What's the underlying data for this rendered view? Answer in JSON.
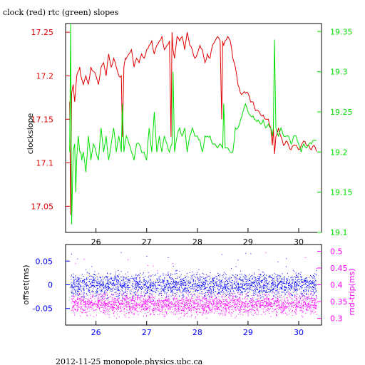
{
  "title": "clock (red) rtc (green) slopes",
  "footer": "2012-11-25 monopole.physics.ubc.ca",
  "colors": {
    "clock": "#e00000",
    "rtc": "#00e000",
    "offset": "#0000ff",
    "rndtrip": "#ff00ff",
    "axis": "#000000"
  },
  "chart_data": [
    {
      "type": "line",
      "ylabel": "clockslope",
      "xlim": [
        25.4,
        30.45
      ],
      "x_ticks": [
        26,
        27,
        28,
        29,
        30
      ],
      "x_tick_labels": [
        "26",
        "27",
        "28",
        "29",
        "30"
      ],
      "ylim_left": [
        17.02,
        17.26
      ],
      "y_ticks_left": [
        17.05,
        17.1,
        17.15,
        17.2,
        17.25
      ],
      "y_tick_labels_left": [
        "17.05",
        "17.1",
        "17.15",
        "17.2",
        "17.25"
      ],
      "ylim_right": [
        19.1,
        19.36
      ],
      "y_ticks_right": [
        19.1,
        19.15,
        19.2,
        19.25,
        19.3,
        19.35
      ],
      "y_tick_labels_right": [
        "19.1",
        "19.15",
        "19.2",
        "19.25",
        "19.3",
        "19.35"
      ],
      "grid": false,
      "series": [
        {
          "axis": "left",
          "x": [
            25.48,
            25.5,
            25.52,
            25.55,
            25.58,
            25.6,
            25.62,
            25.65,
            25.68,
            25.7,
            25.75,
            25.8,
            25.85,
            25.9,
            25.95,
            26.0,
            26.05,
            26.1,
            26.15,
            26.2,
            26.25,
            26.3,
            26.35,
            26.4,
            26.45,
            26.5,
            26.52,
            26.55,
            26.58,
            26.6,
            26.65,
            26.7,
            26.75,
            26.8,
            26.85,
            26.9,
            26.95,
            27.0,
            27.05,
            27.1,
            27.15,
            27.2,
            27.25,
            27.3,
            27.35,
            27.4,
            27.45,
            27.48,
            27.5,
            27.52,
            27.55,
            27.6,
            27.65,
            27.7,
            27.75,
            27.8,
            27.85,
            27.9,
            27.95,
            28.0,
            28.05,
            28.1,
            28.15,
            28.2,
            28.25,
            28.3,
            28.35,
            28.4,
            28.45,
            28.48,
            28.5,
            28.52,
            28.55,
            28.6,
            28.65,
            28.7,
            28.75,
            28.8,
            28.85,
            28.9,
            28.95,
            29.0,
            29.05,
            29.1,
            29.15,
            29.2,
            29.25,
            29.3,
            29.35,
            29.4,
            29.45,
            29.48,
            29.5,
            29.52,
            29.55,
            29.6,
            29.65,
            29.7,
            29.75,
            29.8,
            29.85,
            29.9,
            29.95,
            30.0,
            30.05,
            30.1,
            30.15,
            30.2,
            30.25,
            30.3,
            30.35
          ],
          "y": [
            17.17,
            17.04,
            17.18,
            17.19,
            17.17,
            17.185,
            17.2,
            17.205,
            17.21,
            17.2,
            17.19,
            17.2,
            17.19,
            17.21,
            17.205,
            17.2,
            17.19,
            17.21,
            17.215,
            17.2,
            17.225,
            17.21,
            17.22,
            17.21,
            17.2,
            17.2,
            17.13,
            17.21,
            17.22,
            17.22,
            17.225,
            17.23,
            17.21,
            17.22,
            17.215,
            17.225,
            17.22,
            17.23,
            17.235,
            17.24,
            17.225,
            17.235,
            17.24,
            17.245,
            17.23,
            17.235,
            17.24,
            17.13,
            17.25,
            17.23,
            17.22,
            17.245,
            17.24,
            17.245,
            17.23,
            17.25,
            17.235,
            17.23,
            17.22,
            17.225,
            17.235,
            17.23,
            17.215,
            17.225,
            17.22,
            17.235,
            17.24,
            17.245,
            17.24,
            17.15,
            17.24,
            17.235,
            17.24,
            17.245,
            17.24,
            17.22,
            17.21,
            17.19,
            17.18,
            17.18,
            17.18,
            17.18,
            17.17,
            17.17,
            17.16,
            17.16,
            17.155,
            17.155,
            17.15,
            17.15,
            17.14,
            17.12,
            17.14,
            17.11,
            17.13,
            17.14,
            17.13,
            17.12,
            17.125,
            17.12,
            17.115,
            17.12,
            17.12,
            17.115,
            17.12,
            17.125,
            17.12,
            17.12,
            17.115,
            17.12,
            17.113
          ]
        },
        {
          "axis": "right",
          "x": [
            25.48,
            25.5,
            25.52,
            25.55,
            25.58,
            25.6,
            25.62,
            25.65,
            25.68,
            25.7,
            25.72,
            25.75,
            25.8,
            25.85,
            25.9,
            25.95,
            26.0,
            26.05,
            26.1,
            26.15,
            26.2,
            26.25,
            26.3,
            26.35,
            26.4,
            26.45,
            26.5,
            26.52,
            26.55,
            26.6,
            26.65,
            26.7,
            26.75,
            26.8,
            26.85,
            26.9,
            26.95,
            27.0,
            27.05,
            27.1,
            27.15,
            27.2,
            27.25,
            27.3,
            27.35,
            27.4,
            27.45,
            27.5,
            27.52,
            27.55,
            27.6,
            27.65,
            27.7,
            27.75,
            27.8,
            27.85,
            27.9,
            27.95,
            28.0,
            28.05,
            28.1,
            28.15,
            28.2,
            28.25,
            28.3,
            28.35,
            28.4,
            28.45,
            28.5,
            28.52,
            28.55,
            28.6,
            28.65,
            28.7,
            28.75,
            28.8,
            28.85,
            28.9,
            28.95,
            29.0,
            29.05,
            29.1,
            29.15,
            29.2,
            29.25,
            29.3,
            29.35,
            29.4,
            29.45,
            29.48,
            29.5,
            29.52,
            29.55,
            29.6,
            29.65,
            29.7,
            29.75,
            29.8,
            29.85,
            29.9,
            29.95,
            30.0,
            30.05,
            30.1,
            30.15,
            30.2,
            30.25,
            30.3,
            30.35
          ],
          "y": [
            19.2,
            19.36,
            19.11,
            19.2,
            19.21,
            19.15,
            19.19,
            19.22,
            19.2,
            19.2,
            19.19,
            19.2,
            19.175,
            19.22,
            19.19,
            19.21,
            19.2,
            19.19,
            19.23,
            19.2,
            19.22,
            19.19,
            19.21,
            19.23,
            19.2,
            19.22,
            19.2,
            19.26,
            19.2,
            19.22,
            19.21,
            19.2,
            19.19,
            19.21,
            19.21,
            19.2,
            19.2,
            19.19,
            19.23,
            19.2,
            19.25,
            19.2,
            19.22,
            19.2,
            19.22,
            19.21,
            19.2,
            19.21,
            19.3,
            19.2,
            19.22,
            19.23,
            19.22,
            19.23,
            19.2,
            19.22,
            19.23,
            19.22,
            19.22,
            19.215,
            19.2,
            19.22,
            19.22,
            19.22,
            19.21,
            19.21,
            19.205,
            19.21,
            19.205,
            19.26,
            19.205,
            19.205,
            19.2,
            19.2,
            19.23,
            19.23,
            19.24,
            19.25,
            19.26,
            19.25,
            19.245,
            19.245,
            19.24,
            19.24,
            19.235,
            19.24,
            19.23,
            19.235,
            19.23,
            19.22,
            19.23,
            19.34,
            19.23,
            19.22,
            19.23,
            19.22,
            19.22,
            19.22,
            19.21,
            19.22,
            19.22,
            19.21,
            19.2,
            19.21,
            19.205,
            19.21,
            19.21,
            19.215,
            19.215
          ]
        }
      ]
    },
    {
      "type": "scatter",
      "ylabel_left": "offset(ms)",
      "ylabel_right": "rnd-trip(ms)",
      "xlim": [
        25.4,
        30.45
      ],
      "x_ticks": [
        26,
        27,
        28,
        29,
        30
      ],
      "x_tick_labels": [
        "26",
        "27",
        "28",
        "29",
        "30"
      ],
      "ylim_left": [
        -0.085,
        0.085
      ],
      "y_ticks_left": [
        -0.05,
        0,
        0.05
      ],
      "y_tick_labels_left": [
        "-0.05",
        "0",
        "0.05"
      ],
      "ylim_right": [
        0.28,
        0.52
      ],
      "y_ticks_right": [
        0.3,
        0.35,
        0.4,
        0.45,
        0.5
      ],
      "y_tick_labels_right": [
        "0.3",
        "0.35",
        "0.4",
        "0.45",
        "0.5"
      ],
      "grid": false,
      "series": [
        {
          "axis": "left",
          "center": 0.0,
          "spread": 0.012,
          "count": 2600,
          "outlier_max": 0.07
        },
        {
          "axis": "right",
          "center": 0.342,
          "spread": 0.015,
          "count": 2600,
          "outlier_max": 0.5
        }
      ]
    }
  ]
}
